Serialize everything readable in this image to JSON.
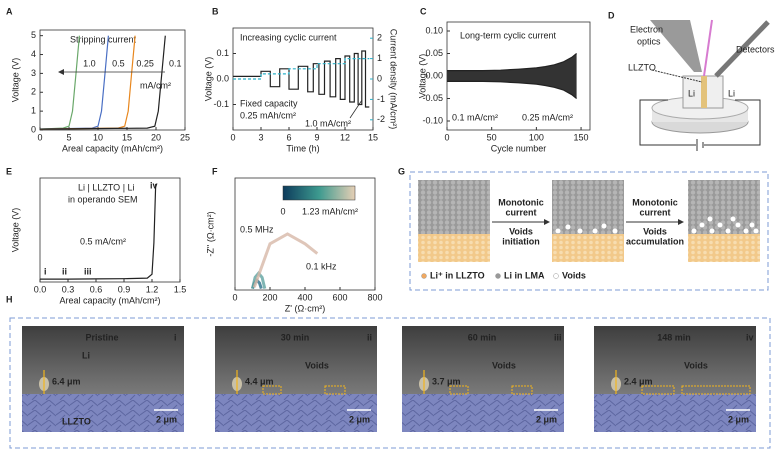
{
  "panel_labels": [
    "A",
    "B",
    "C",
    "D",
    "E",
    "F",
    "G",
    "H"
  ],
  "chart_data": [
    {
      "type": "line",
      "title": "Stripping current",
      "xlabel": "Areal capacity (mAh/cm²)",
      "ylabel": "Voltage (V)",
      "xlim": [
        0,
        25
      ],
      "xticks": [
        0,
        5,
        10,
        15,
        20,
        25
      ],
      "ylim": [
        0,
        5.3
      ],
      "yticks": [
        0,
        1,
        2,
        3,
        4,
        5
      ],
      "series": [
        {
          "name": "1.0",
          "color": "#6aa86a",
          "x": [
            0,
            4,
            5,
            5.6,
            6.2,
            6.8
          ],
          "values": [
            0.05,
            0.1,
            0.2,
            1,
            3,
            5
          ]
        },
        {
          "name": "0.5",
          "color": "#4a6fc4",
          "x": [
            0,
            9,
            10,
            10.6,
            11.2,
            11.8
          ],
          "values": [
            0.05,
            0.1,
            0.2,
            1,
            3,
            5
          ]
        },
        {
          "name": "0.25",
          "color": "#e8871e",
          "x": [
            0,
            13.5,
            14.6,
            15.2,
            15.8,
            16.4
          ],
          "values": [
            0.05,
            0.1,
            0.2,
            1,
            3,
            5
          ]
        },
        {
          "name": "0.1",
          "color": "#222222",
          "x": [
            0,
            18.5,
            19.8,
            20.4,
            21,
            21.6
          ],
          "values": [
            0.05,
            0.1,
            0.2,
            1,
            3,
            5
          ]
        }
      ],
      "annotations": [
        "mA/cm²"
      ]
    },
    {
      "type": "line",
      "title": "Increasing cyclic current",
      "xlabel": "Time (h)",
      "ylabel": "Voltage (V)",
      "y2label": "Current density (mA/cm²)",
      "xlim": [
        0,
        15
      ],
      "xticks": [
        0,
        3,
        6,
        9,
        12,
        15
      ],
      "ylim": [
        -0.2,
        0.2
      ],
      "yticks": [
        -0.1,
        {
          "value": 0,
          "label": "0.0"
        },
        0.1
      ],
      "y2lim": [
        -2.5,
        2.5
      ],
      "y2ticks": [
        -2,
        -1,
        0,
        1,
        2
      ],
      "series": [
        {
          "color": "#222222",
          "x": [
            0,
            3,
            3,
            4,
            4,
            5,
            5,
            6,
            6,
            7,
            7,
            8,
            8,
            8.6,
            8.6,
            9.2,
            9.2,
            9.8,
            9.8,
            10.4,
            10.4,
            11,
            11,
            11.5,
            11.5,
            12,
            12,
            12.5,
            12.5,
            13,
            13,
            13.4,
            13.4,
            13.8,
            13.8,
            14.2,
            14.2,
            14.6
          ],
          "values": [
            0.01,
            0.01,
            0.03,
            0.03,
            -0.03,
            -0.03,
            0.04,
            0.04,
            -0.04,
            -0.04,
            0.05,
            0.05,
            -0.05,
            -0.05,
            0.06,
            0.06,
            -0.06,
            -0.06,
            0.07,
            0.07,
            -0.07,
            -0.07,
            0.08,
            0.08,
            -0.08,
            -0.08,
            0.09,
            0.09,
            -0.09,
            -0.09,
            0.1,
            0.1,
            -0.1,
            -0.1,
            0.11,
            0.11,
            -0.11,
            -0.11
          ]
        },
        {
          "color": "#2bb0c8",
          "axis": "y2",
          "x": [
            0,
            3,
            3,
            6,
            6,
            9,
            9,
            12,
            12,
            14.6
          ],
          "values": [
            0,
            0,
            0.25,
            0.25,
            0.5,
            0.5,
            0.75,
            0.75,
            1,
            1
          ]
        }
      ],
      "annotations": [
        "Fixed capacity",
        "0.25 mAh/cm²",
        "1.0 mA/cm²"
      ]
    },
    {
      "type": "line",
      "title": "Long-term cyclic current",
      "xlabel": "Cycle number",
      "ylabel": "Voltage (V)",
      "fill_between": true,
      "xlim": [
        0,
        160
      ],
      "xticks": [
        0,
        50,
        100,
        150
      ],
      "ylim": [
        -0.12,
        0.12
      ],
      "yticks": [
        {
          "value": -0.1,
          "label": "-0.10"
        },
        {
          "value": -0.05,
          "label": "-0.05"
        },
        {
          "value": 0,
          "label": "0.00"
        },
        {
          "value": 0.05,
          "label": "0.05"
        },
        {
          "value": 0.1,
          "label": "0.10"
        }
      ],
      "series": [
        {
          "color": "#222222",
          "x": [
            0,
            20,
            40,
            60,
            80,
            100,
            110,
            120,
            130,
            140,
            145
          ],
          "values": [
            0.012,
            0.012,
            0.012,
            0.013,
            0.015,
            0.018,
            0.021,
            0.025,
            0.031,
            0.042,
            0.05
          ]
        },
        {
          "color": "#222222",
          "x": [
            0,
            20,
            40,
            60,
            80,
            100,
            110,
            120,
            130,
            140,
            145
          ],
          "values": [
            -0.012,
            -0.012,
            -0.012,
            -0.013,
            -0.015,
            -0.018,
            -0.021,
            -0.025,
            -0.031,
            -0.042,
            -0.05
          ]
        }
      ],
      "annotations": [
        "0.1 mA/cm²",
        "0.25 mA/cm²"
      ]
    },
    {
      "type": "line",
      "xlabel": "Areal capacity (mAh/cm²)",
      "ylabel": "Voltage (V)",
      "xlim": [
        0,
        1.5
      ],
      "xticks": [
        {
          "value": 0,
          "label": "0.0"
        },
        0.3,
        0.6,
        0.9,
        1.2,
        1.5
      ],
      "ylim": [
        0,
        5.3
      ],
      "series": [
        {
          "color": "#222222",
          "x": [
            0,
            0.3,
            0.6,
            0.9,
            1.15,
            1.2,
            1.22,
            1.24
          ],
          "values": [
            0.15,
            0.15,
            0.16,
            0.17,
            0.2,
            0.4,
            2,
            5
          ]
        }
      ],
      "annotations": [
        "Li | LLZTO | Li",
        "in operando SEM",
        "0.5 mA/cm²",
        "i",
        "ii",
        "iii",
        "iv"
      ]
    },
    {
      "type": "line",
      "xlabel": "Z' (Ω·cm²)",
      "ylabel": "-Z'' (Ω·cm²)",
      "xlim": [
        0,
        800
      ],
      "xticks": [
        0,
        200,
        400,
        600,
        800
      ],
      "ylim": [
        0,
        800
      ],
      "series": [
        {
          "color": "#2a6f8a",
          "x": [
            100,
            110,
            125,
            140,
            150
          ],
          "values": [
            10,
            50,
            70,
            50,
            10
          ]
        },
        {
          "color": "#5fa3a0",
          "x": [
            100,
            115,
            135,
            155,
            170
          ],
          "values": [
            10,
            90,
            120,
            90,
            10
          ]
        },
        {
          "color": "#d7b8a8",
          "x": [
            110,
            200,
            300,
            400,
            470
          ],
          "values": [
            20,
            330,
            400,
            330,
            260
          ]
        }
      ],
      "colorbar_labels": [
        "0",
        "1.23 mAh/cm²"
      ],
      "annotations": [
        "0.5 MHz",
        "0.1 kHz"
      ]
    }
  ],
  "panel_d": {
    "labels": [
      "Electron",
      "optics",
      "Detectors",
      "LLZTO",
      "Li",
      "Li"
    ]
  },
  "panel_g": {
    "arrows": [
      [
        "Monotonic",
        "current",
        "Voids",
        "initiation"
      ],
      [
        "Monotonic",
        "current",
        "Voids",
        "accumulation"
      ]
    ],
    "legend": [
      "Li⁺ in LLZTO",
      "Li in LMA",
      "Voids"
    ]
  },
  "panel_h": {
    "labels": [
      "Li",
      "LLZTO"
    ],
    "panels": [
      {
        "title": "Pristine",
        "index": "i",
        "thickness": "6.4 μm",
        "scale": "2 μm"
      },
      {
        "title": "30 min",
        "index": "ii",
        "thickness": "4.4 μm",
        "scale": "2 μm",
        "voids": "Voids"
      },
      {
        "title": "60 min",
        "index": "iii",
        "thickness": "3.7 μm",
        "scale": "2 μm",
        "voids": "Voids"
      },
      {
        "title": "148 min",
        "index": "iv",
        "thickness": "2.4 μm",
        "scale": "2 μm",
        "voids": "Voids"
      }
    ]
  }
}
